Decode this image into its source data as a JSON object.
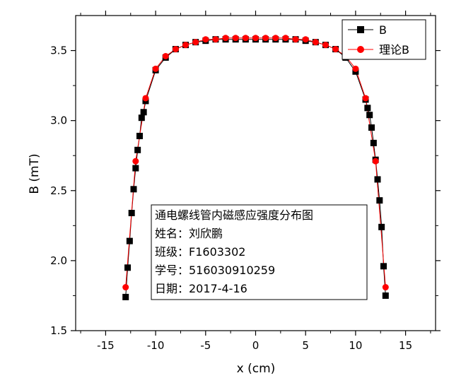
{
  "chart_data": {
    "type": "scatter",
    "xlabel": "x (cm)",
    "ylabel": "B (mT)",
    "xlim": [
      -18,
      18
    ],
    "ylim": [
      1.5,
      3.75
    ],
    "xticks": [
      -15,
      -10,
      -5,
      0,
      5,
      10,
      15
    ],
    "yticks": [
      1.5,
      2.0,
      2.5,
      3.0,
      3.5
    ],
    "ytick_labels": [
      "1.5",
      "2.0",
      "2.5",
      "3.0",
      "3.5"
    ],
    "grid": false,
    "legend_position": "top-right",
    "series": [
      {
        "name": "B",
        "color": "#000000",
        "marker": "square",
        "x": [
          -13,
          -12.8,
          -12.6,
          -12.4,
          -12.2,
          -12,
          -11.8,
          -11.6,
          -11.4,
          -11.2,
          -11,
          -10,
          -9,
          -8,
          -7,
          -6,
          -5,
          -4,
          -3,
          -2,
          -1,
          0,
          1,
          2,
          3,
          4,
          5,
          6,
          7,
          8,
          9,
          10,
          11,
          11.2,
          11.4,
          11.6,
          11.8,
          12,
          12.2,
          12.4,
          12.6,
          12.8,
          13
        ],
        "y": [
          1.74,
          1.95,
          2.14,
          2.34,
          2.51,
          2.66,
          2.79,
          2.89,
          3.02,
          3.06,
          3.14,
          3.36,
          3.45,
          3.51,
          3.54,
          3.56,
          3.57,
          3.58,
          3.58,
          3.58,
          3.58,
          3.58,
          3.58,
          3.58,
          3.58,
          3.58,
          3.57,
          3.56,
          3.54,
          3.51,
          3.45,
          3.35,
          3.15,
          3.09,
          3.04,
          2.95,
          2.84,
          2.72,
          2.58,
          2.43,
          2.24,
          1.96,
          1.75
        ]
      },
      {
        "name": "理论B",
        "color": "#ff0000",
        "marker": "circle",
        "x": [
          -13,
          -12,
          -11,
          -10,
          -9,
          -8,
          -7,
          -6,
          -5,
          -4,
          -3,
          -2,
          -1,
          0,
          1,
          2,
          3,
          4,
          5,
          6,
          7,
          8,
          9,
          10,
          11,
          12,
          13
        ],
        "y": [
          1.81,
          2.71,
          3.16,
          3.37,
          3.46,
          3.51,
          3.54,
          3.56,
          3.58,
          3.58,
          3.59,
          3.59,
          3.59,
          3.59,
          3.59,
          3.59,
          3.59,
          3.58,
          3.58,
          3.56,
          3.54,
          3.51,
          3.46,
          3.37,
          3.16,
          2.71,
          1.81
        ]
      }
    ],
    "annotation": {
      "lines": [
        "通电螺线管内磁感应强度分布图",
        "姓名：刘欣鹏",
        "班级：F1603302",
        "学号：516030910259",
        "日期：2017-4-16"
      ]
    }
  }
}
